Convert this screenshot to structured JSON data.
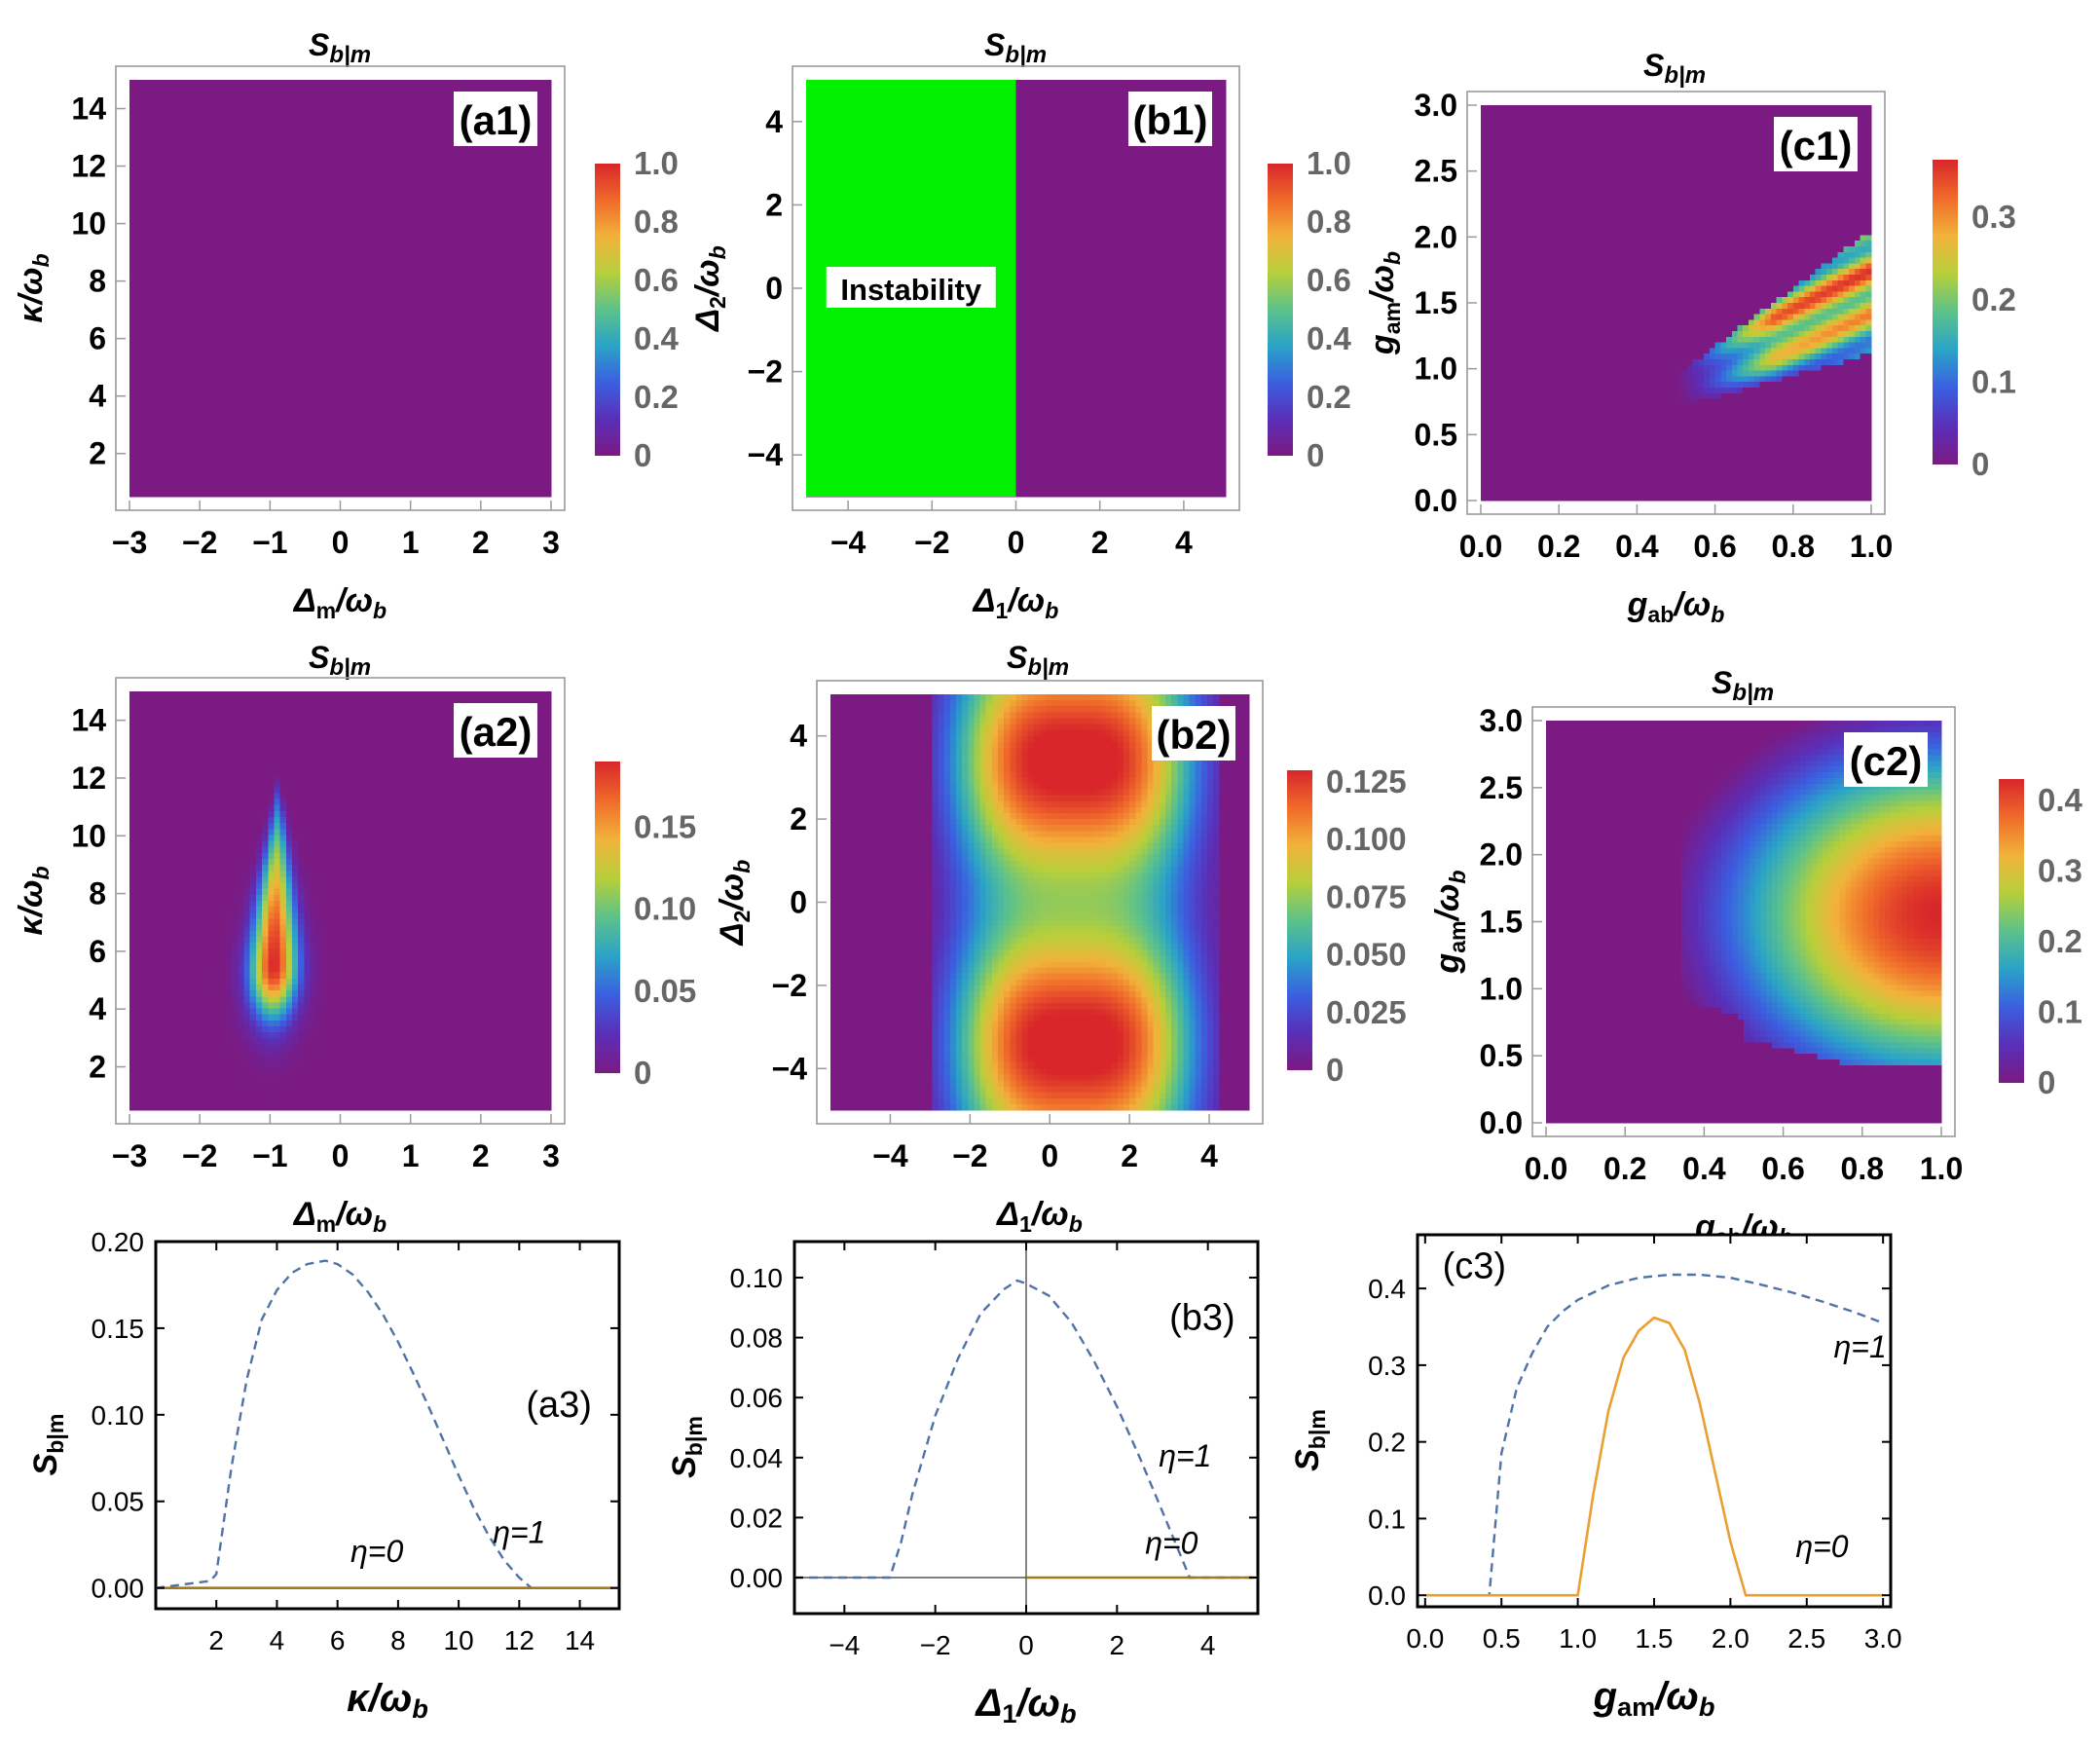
{
  "colorbar_stops": [
    "#7b1a82",
    "#5a2fb8",
    "#3b5fe0",
    "#2aa3c8",
    "#5cc28a",
    "#b6cf3a",
    "#f2b23a",
    "#f06a2a",
    "#d8262a"
  ],
  "chart_data": [
    {
      "id": "a1",
      "type": "heatmap",
      "title": "S",
      "title_sub": "b|m",
      "panel": "(a1)",
      "xlabel": {
        "main": "Δ",
        "sub": "m",
        "tail": "/ω",
        "tail_sub": "b"
      },
      "ylabel": {
        "main": "κ",
        "sub": "",
        "tail": "/ω",
        "tail_sub": "b"
      },
      "xlim": [
        -3,
        3
      ],
      "ylim": [
        0.5,
        15
      ],
      "xticks": [
        "-3",
        "-2",
        "-1",
        "0",
        "1",
        "2",
        "3"
      ],
      "xtick_values": [
        -3,
        -2,
        -1,
        0,
        1,
        2,
        3
      ],
      "yticks": [
        "2",
        "4",
        "6",
        "8",
        "10",
        "12",
        "14"
      ],
      "ytick_values": [
        2,
        4,
        6,
        8,
        10,
        12,
        14
      ],
      "colorbar": {
        "range": [
          0,
          1.0
        ],
        "ticks": [
          "0",
          "0.2",
          "0.4",
          "0.6",
          "0.8",
          "1.0"
        ],
        "tick_values": [
          0,
          0.2,
          0.4,
          0.6,
          0.8,
          1.0
        ]
      },
      "field": "zero"
    },
    {
      "id": "b1",
      "type": "heatmap",
      "title": "S",
      "title_sub": "b|m",
      "panel": "(b1)",
      "xlabel": {
        "main": "Δ",
        "sub": "1",
        "tail": "/ω",
        "tail_sub": "b"
      },
      "ylabel": {
        "main": "Δ",
        "sub": "2",
        "tail": "/ω",
        "tail_sub": "b"
      },
      "xlim": [
        -5,
        5
      ],
      "ylim": [
        -5,
        5
      ],
      "xticks": [
        "-4",
        "-2",
        "0",
        "2",
        "4"
      ],
      "xtick_values": [
        -4,
        -2,
        0,
        2,
        4
      ],
      "yticks": [
        "-4",
        "-2",
        "0",
        "2",
        "4"
      ],
      "ytick_values": [
        -4,
        -2,
        0,
        2,
        4
      ],
      "colorbar": {
        "range": [
          0,
          1.0
        ],
        "ticks": [
          "0",
          "0.2",
          "0.4",
          "0.6",
          "0.8",
          "1.0"
        ],
        "tick_values": [
          0,
          0.2,
          0.4,
          0.6,
          0.8,
          1.0
        ]
      },
      "field": "zero",
      "region": {
        "label": "Instability",
        "x": [
          -5,
          0
        ],
        "y": [
          -5,
          5
        ],
        "color": "#00f000"
      }
    },
    {
      "id": "c1",
      "type": "heatmap",
      "title": "S",
      "title_sub": "b|m",
      "panel": "(c1)",
      "xlabel": {
        "main": "g",
        "sub": "ab",
        "tail": "/ω",
        "tail_sub": "b"
      },
      "ylabel": {
        "main": "g",
        "sub": "am",
        "tail": "/ω",
        "tail_sub": "b"
      },
      "xlim": [
        0,
        1
      ],
      "ylim": [
        0,
        3
      ],
      "xticks": [
        "0.0",
        "0.2",
        "0.4",
        "0.6",
        "0.8",
        "1.0"
      ],
      "xtick_values": [
        0,
        0.2,
        0.4,
        0.6,
        0.8,
        1.0
      ],
      "yticks": [
        "0.0",
        "0.5",
        "1.0",
        "1.5",
        "2.0",
        "2.5",
        "3.0"
      ],
      "ytick_values": [
        0,
        0.5,
        1.0,
        1.5,
        2.0,
        2.5,
        3.0
      ],
      "colorbar": {
        "range": [
          0,
          0.37
        ],
        "ticks": [
          "0",
          "0.1",
          "0.2",
          "0.3"
        ],
        "tick_values": [
          0,
          0.1,
          0.2,
          0.3
        ]
      },
      "field": "c1"
    },
    {
      "id": "a2",
      "type": "heatmap",
      "title": "S",
      "title_sub": "b|m",
      "panel": "(a2)",
      "xlabel": {
        "main": "Δ",
        "sub": "m",
        "tail": "/ω",
        "tail_sub": "b"
      },
      "ylabel": {
        "main": "κ",
        "sub": "",
        "tail": "/ω",
        "tail_sub": "b"
      },
      "xlim": [
        -3,
        3
      ],
      "ylim": [
        0.5,
        15
      ],
      "xticks": [
        "-3",
        "-2",
        "-1",
        "0",
        "1",
        "2",
        "3"
      ],
      "xtick_values": [
        -3,
        -2,
        -1,
        0,
        1,
        2,
        3
      ],
      "yticks": [
        "2",
        "4",
        "6",
        "8",
        "10",
        "12",
        "14"
      ],
      "ytick_values": [
        2,
        4,
        6,
        8,
        10,
        12,
        14
      ],
      "colorbar": {
        "range": [
          0,
          0.19
        ],
        "ticks": [
          "0",
          "0.05",
          "0.10",
          "0.15"
        ],
        "tick_values": [
          0,
          0.05,
          0.1,
          0.15
        ]
      },
      "field": "a2"
    },
    {
      "id": "b2",
      "type": "heatmap",
      "title": "S",
      "title_sub": "b|m",
      "panel": "(b2)",
      "xlabel": {
        "main": "Δ",
        "sub": "1",
        "tail": "/ω",
        "tail_sub": "b"
      },
      "ylabel": {
        "main": "Δ",
        "sub": "2",
        "tail": "/ω",
        "tail_sub": "b"
      },
      "xlim": [
        -5.5,
        5
      ],
      "ylim": [
        -5,
        5
      ],
      "xticks": [
        "-4",
        "-2",
        "0",
        "2",
        "4"
      ],
      "xtick_values": [
        -4,
        -2,
        0,
        2,
        4
      ],
      "yticks": [
        "-4",
        "-2",
        "0",
        "2",
        "4"
      ],
      "ytick_values": [
        -4,
        -2,
        0,
        2,
        4
      ],
      "colorbar": {
        "range": [
          0,
          0.13
        ],
        "ticks": [
          "0",
          "0.025",
          "0.050",
          "0.075",
          "0.100",
          "0.125"
        ],
        "tick_values": [
          0,
          0.025,
          0.05,
          0.075,
          0.1,
          0.125
        ]
      },
      "field": "b2"
    },
    {
      "id": "c2",
      "type": "heatmap",
      "title": "S",
      "title_sub": "b|m",
      "panel": "(c2)",
      "xlabel": {
        "main": "g",
        "sub": "ab",
        "tail": "/ω",
        "tail_sub": "b"
      },
      "ylabel": {
        "main": "g",
        "sub": "am",
        "tail": "/ω",
        "tail_sub": "b"
      },
      "xlim": [
        0,
        1
      ],
      "ylim": [
        0,
        3
      ],
      "xticks": [
        "0.0",
        "0.2",
        "0.4",
        "0.6",
        "0.8",
        "1.0"
      ],
      "xtick_values": [
        0,
        0.2,
        0.4,
        0.6,
        0.8,
        1.0
      ],
      "yticks": [
        "0.0",
        "0.5",
        "1.0",
        "1.5",
        "2.0",
        "2.5",
        "3.0"
      ],
      "ytick_values": [
        0,
        0.5,
        1.0,
        1.5,
        2.0,
        2.5,
        3.0
      ],
      "colorbar": {
        "range": [
          0,
          0.43
        ],
        "ticks": [
          "0",
          "0.1",
          "0.2",
          "0.3",
          "0.4"
        ],
        "tick_values": [
          0,
          0.1,
          0.2,
          0.3,
          0.4
        ]
      },
      "field": "c2"
    },
    {
      "id": "a3",
      "type": "line",
      "panel": "(a3)",
      "xlabel": {
        "main": "κ",
        "sub": "",
        "tail": "/ω",
        "tail_sub": "b"
      },
      "ylabel": {
        "main": "S",
        "sub": "b|m",
        "tail": "",
        "tail_sub": ""
      },
      "xlim": [
        0,
        15.3
      ],
      "ylim": [
        -0.012,
        0.2
      ],
      "xticks": [
        "2",
        "4",
        "6",
        "8",
        "10",
        "12",
        "14"
      ],
      "xtick_values": [
        2,
        4,
        6,
        8,
        10,
        12,
        14
      ],
      "yticks": [
        "0.00",
        "0.05",
        "0.10",
        "0.15",
        "0.20"
      ],
      "ytick_values": [
        0,
        0.05,
        0.1,
        0.15,
        0.2
      ],
      "series": [
        {
          "name": "η=1",
          "style": "dashed",
          "color": "#4f73a8",
          "x": [
            0,
            1.8,
            2.0,
            2.5,
            3.0,
            3.5,
            4.0,
            4.5,
            5.0,
            5.6,
            6.0,
            6.5,
            7.0,
            7.5,
            8.0,
            8.5,
            9.0,
            9.5,
            10.0,
            10.5,
            11.0,
            11.5,
            12.0,
            12.4,
            15.3
          ],
          "y": [
            0,
            0.004,
            0.008,
            0.07,
            0.12,
            0.155,
            0.172,
            0.182,
            0.187,
            0.189,
            0.187,
            0.181,
            0.171,
            0.158,
            0.142,
            0.124,
            0.105,
            0.085,
            0.065,
            0.046,
            0.03,
            0.016,
            0.006,
            0,
            0
          ]
        },
        {
          "name": "η=0",
          "style": "solid",
          "color": "#a07a1a",
          "x": [
            0,
            15.3
          ],
          "y": [
            0,
            0
          ]
        }
      ],
      "labels": [
        {
          "text": "η=1",
          "x": 12.0,
          "y": 0.026
        },
        {
          "text": "η=0",
          "x": 7.3,
          "y": 0.015
        }
      ]
    },
    {
      "id": "b3",
      "type": "line",
      "panel": "(b3)",
      "xlabel": {
        "main": "Δ",
        "sub": "1",
        "tail": "/ω",
        "tail_sub": "b"
      },
      "ylabel": {
        "main": "S",
        "sub": "b|m",
        "tail": "",
        "tail_sub": ""
      },
      "xlim": [
        -5.1,
        5.1
      ],
      "ylim": [
        -0.012,
        0.112
      ],
      "xticks": [
        "-4",
        "-2",
        "0",
        "2",
        "4"
      ],
      "xtick_values": [
        -4,
        -2,
        0,
        2,
        4
      ],
      "yticks": [
        "0.00",
        "0.02",
        "0.04",
        "0.06",
        "0.08",
        "0.10"
      ],
      "ytick_values": [
        0,
        0.02,
        0.04,
        0.06,
        0.08,
        0.1
      ],
      "vline": 0,
      "hline": 0,
      "series": [
        {
          "name": "η=1",
          "style": "dashed",
          "color": "#4f73a8",
          "x": [
            -5.1,
            -3.0,
            -2.75,
            -2.5,
            -2.0,
            -1.5,
            -1.0,
            -0.5,
            -0.2,
            0.0,
            0.5,
            1.0,
            1.5,
            2.0,
            2.5,
            3.0,
            3.3,
            3.6,
            5.1
          ],
          "y": [
            0,
            0,
            0.012,
            0.028,
            0.054,
            0.073,
            0.088,
            0.096,
            0.099,
            0.098,
            0.094,
            0.085,
            0.072,
            0.057,
            0.04,
            0.022,
            0.011,
            0,
            0
          ]
        },
        {
          "name": "η=0",
          "style": "solid",
          "color": "#a07a1a",
          "x": [
            0,
            5.1
          ],
          "y": [
            0,
            0
          ]
        }
      ],
      "labels": [
        {
          "text": "η=1",
          "x": 3.5,
          "y": 0.037
        },
        {
          "text": "η=0",
          "x": 3.2,
          "y": 0.008
        }
      ]
    },
    {
      "id": "c3",
      "type": "line",
      "panel": "(c3)",
      "xlabel": {
        "main": "g",
        "sub": "am",
        "tail": "/ω",
        "tail_sub": "b"
      },
      "ylabel": {
        "main": "S",
        "sub": "b|m",
        "tail": "",
        "tail_sub": ""
      },
      "xlim": [
        -0.05,
        3.05
      ],
      "ylim": [
        -0.015,
        0.47
      ],
      "xticks": [
        "0.0",
        "0.5",
        "1.0",
        "1.5",
        "2.0",
        "2.5",
        "3.0"
      ],
      "xtick_values": [
        0,
        0.5,
        1.0,
        1.5,
        2.0,
        2.5,
        3.0
      ],
      "yticks": [
        "0.0",
        "0.1",
        "0.2",
        "0.3",
        "0.4"
      ],
      "ytick_values": [
        0,
        0.1,
        0.2,
        0.3,
        0.4
      ],
      "series": [
        {
          "name": "η=1",
          "style": "dashed",
          "color": "#4f73a8",
          "x": [
            0.0,
            0.42,
            0.5,
            0.6,
            0.7,
            0.8,
            0.9,
            1.0,
            1.2,
            1.4,
            1.6,
            1.8,
            2.0,
            2.2,
            2.4,
            2.6,
            2.8,
            3.0
          ],
          "y": [
            0,
            0,
            0.185,
            0.27,
            0.315,
            0.35,
            0.37,
            0.385,
            0.404,
            0.414,
            0.418,
            0.418,
            0.414,
            0.405,
            0.395,
            0.383,
            0.37,
            0.355
          ]
        },
        {
          "name": "η=0",
          "style": "solid",
          "color": "#e8a030",
          "x": [
            0.0,
            1.0,
            1.1,
            1.2,
            1.3,
            1.4,
            1.5,
            1.6,
            1.7,
            1.8,
            1.9,
            2.0,
            2.1,
            3.0
          ],
          "y": [
            0,
            0,
            0.13,
            0.24,
            0.31,
            0.345,
            0.362,
            0.355,
            0.32,
            0.25,
            0.16,
            0.07,
            0,
            0
          ]
        }
      ],
      "labels": [
        {
          "text": "η=1",
          "x": 2.85,
          "y": 0.31
        },
        {
          "text": "η=0",
          "x": 2.6,
          "y": 0.05
        }
      ]
    }
  ]
}
